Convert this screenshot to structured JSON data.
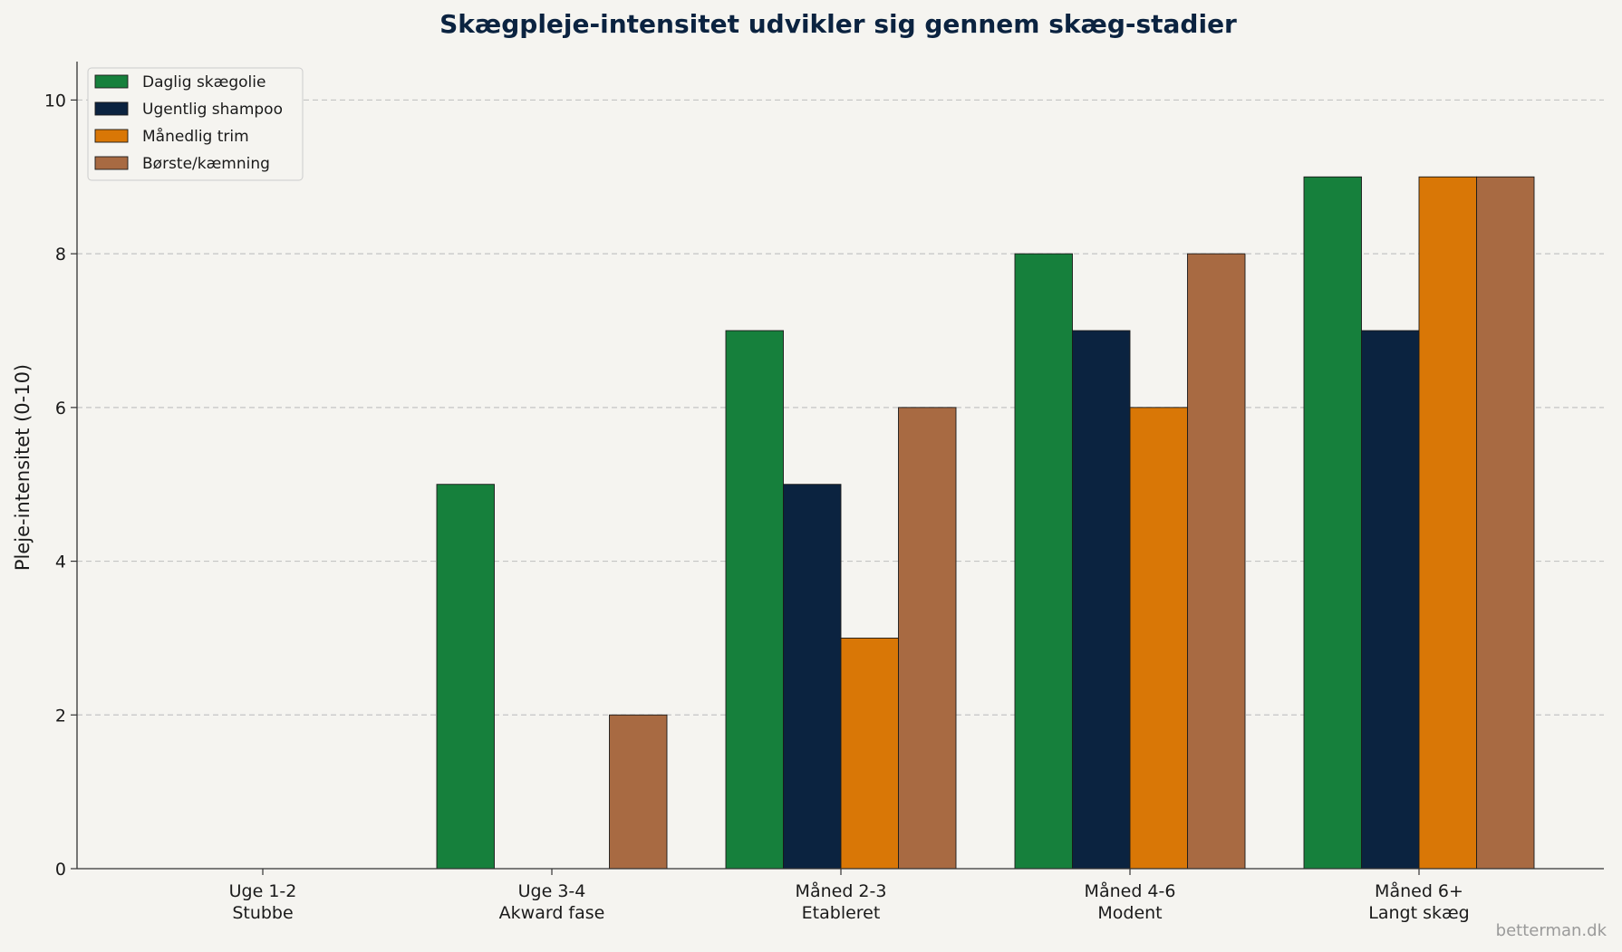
{
  "chart_data": {
    "type": "bar",
    "title": "Skægpleje-intensitet udvikler sig gennem skæg-stadier",
    "ylabel": "Pleje-intensitet (0-10)",
    "xlabel": "",
    "ylim": [
      0,
      10.5
    ],
    "yticks": [
      "0",
      "2",
      "4",
      "6",
      "8",
      "10"
    ],
    "grid": "horizontal dashed",
    "legend_position": "top-left",
    "categories": [
      {
        "line1": "Uge 1-2",
        "line2": "Stubbe"
      },
      {
        "line1": "Uge 3-4",
        "line2": "Akward fase"
      },
      {
        "line1": "Måned 2-3",
        "line2": "Etableret"
      },
      {
        "line1": "Måned 4-6",
        "line2": "Modent"
      },
      {
        "line1": "Måned 6+",
        "line2": "Langt skæg"
      }
    ],
    "series": [
      {
        "name": "Daglig skægolie",
        "color": "#16803c",
        "values": [
          0,
          5,
          7,
          8,
          9
        ]
      },
      {
        "name": "Ugentlig shampoo",
        "color": "#0b2340",
        "values": [
          0,
          0,
          5,
          7,
          7
        ]
      },
      {
        "name": "Månedlig trim",
        "color": "#d97706",
        "values": [
          0,
          0,
          3,
          6,
          9
        ]
      },
      {
        "name": "Børste/kæmning",
        "color": "#a86a42",
        "values": [
          0,
          2,
          6,
          8,
          9
        ]
      }
    ]
  },
  "watermark": "betterman.dk"
}
